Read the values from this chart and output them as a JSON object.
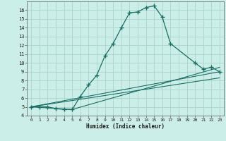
{
  "xlabel": "Humidex (Indice chaleur)",
  "bg_color": "#cceee8",
  "grid_color": "#aad4cc",
  "line_color": "#1a6e64",
  "xlim": [
    -0.5,
    23.5
  ],
  "ylim": [
    4,
    17
  ],
  "xticks": [
    0,
    1,
    2,
    3,
    4,
    5,
    6,
    7,
    8,
    9,
    10,
    11,
    12,
    13,
    14,
    15,
    16,
    17,
    18,
    19,
    20,
    21,
    22,
    23
  ],
  "yticks": [
    4,
    5,
    6,
    7,
    8,
    9,
    10,
    11,
    12,
    13,
    14,
    15,
    16
  ],
  "main_line_x": [
    0,
    1,
    2,
    3,
    4,
    5,
    6,
    7,
    8,
    9,
    10,
    11,
    12,
    13,
    14,
    15,
    16,
    17,
    20,
    21,
    22,
    23
  ],
  "main_line_y": [
    5,
    5,
    5,
    4.8,
    4.7,
    4.7,
    6.2,
    7.5,
    8.6,
    10.8,
    12.2,
    14.0,
    15.7,
    15.8,
    16.3,
    16.5,
    15.2,
    12.2,
    10.0,
    9.3,
    9.5,
    9.0
  ],
  "line2_x": [
    0,
    5,
    23
  ],
  "line2_y": [
    5,
    4.7,
    9.5
  ],
  "line3_x": [
    0,
    23
  ],
  "line3_y": [
    5,
    8.3
  ],
  "line4_x": [
    0,
    23
  ],
  "line4_y": [
    5,
    9.0
  ]
}
